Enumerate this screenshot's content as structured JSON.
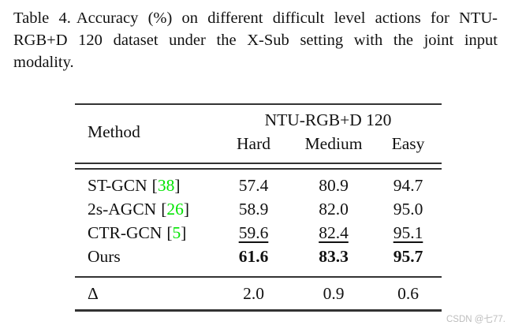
{
  "caption": {
    "label": "Table 4.",
    "line1_rest": "Accuracy (%) on different difficult level actions for NTU-",
    "line2": "RGB+D 120 dataset under the X-Sub setting with the joint input",
    "line3": "modality."
  },
  "table": {
    "header": {
      "method": "Method",
      "group": "NTU-RGB+D 120",
      "columns": [
        "Hard",
        "Medium",
        "Easy"
      ]
    },
    "cite_open": "[",
    "cite_close": "]",
    "rows": [
      {
        "name": "ST-GCN",
        "cite": "38",
        "values": [
          "57.4",
          "80.9",
          "94.7"
        ]
      },
      {
        "name": "2s-AGCN",
        "cite": "26",
        "values": [
          "58.9",
          "82.0",
          "95.0"
        ]
      },
      {
        "name": "CTR-GCN",
        "cite": "5",
        "values": [
          "59.6",
          "82.4",
          "95.1"
        ]
      },
      {
        "name": "Ours",
        "cite": "",
        "values": [
          "61.6",
          "83.3",
          "95.7"
        ]
      }
    ],
    "delta": {
      "symbol": "Δ",
      "values": [
        "2.0",
        "0.9",
        "0.6"
      ]
    }
  },
  "colors": {
    "citation_green": "#00E400",
    "rule": "#333333",
    "watermark_gray": "#bdbdbd"
  },
  "watermark": "CSDN @七77."
}
